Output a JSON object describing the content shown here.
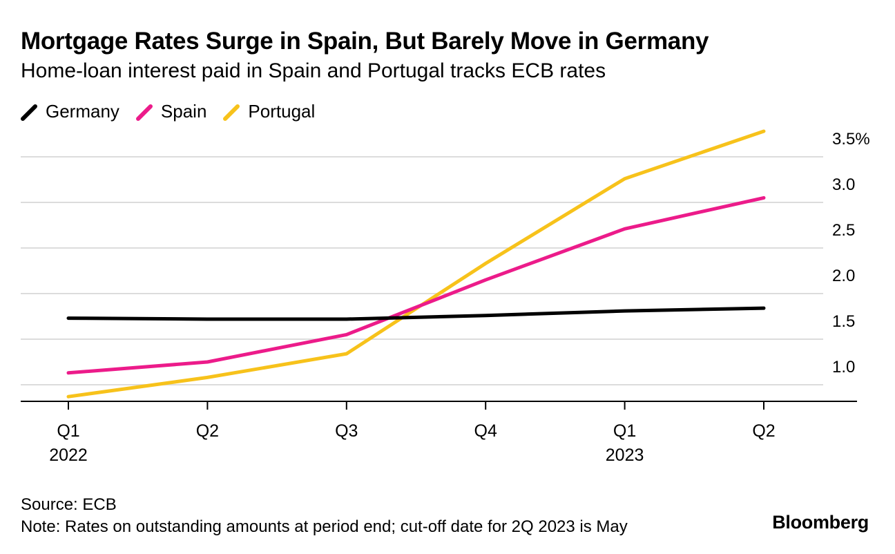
{
  "chart_data": {
    "type": "line",
    "title": "Mortgage Rates Surge in Spain, But Barely Move in Germany",
    "subtitle": "Home-loan interest paid in Spain and Portugal tracks ECB rates",
    "x": [
      "Q1 2022",
      "Q2 2022",
      "Q3 2022",
      "Q4 2022",
      "Q1 2023",
      "Q2 2023"
    ],
    "x_tick_labels": [
      {
        "quarter": "Q1",
        "year": "2022"
      },
      {
        "quarter": "Q2",
        "year": ""
      },
      {
        "quarter": "Q3",
        "year": ""
      },
      {
        "quarter": "Q4",
        "year": ""
      },
      {
        "quarter": "Q1",
        "year": "2023"
      },
      {
        "quarter": "Q2",
        "year": ""
      }
    ],
    "series": [
      {
        "name": "Germany",
        "color": "#000000",
        "values": [
          1.73,
          1.72,
          1.72,
          1.76,
          1.81,
          1.84
        ]
      },
      {
        "name": "Spain",
        "color": "#ec1b8a",
        "values": [
          1.13,
          1.25,
          1.55,
          2.15,
          2.71,
          3.05
        ]
      },
      {
        "name": "Portugal",
        "color": "#f7c21b",
        "values": [
          0.87,
          1.08,
          1.34,
          2.33,
          3.26,
          3.78
        ]
      }
    ],
    "y_ticks": [
      {
        "value": 1.0,
        "label": "1.0"
      },
      {
        "value": 1.5,
        "label": "1.5"
      },
      {
        "value": 2.0,
        "label": "2.0"
      },
      {
        "value": 2.5,
        "label": "2.5"
      },
      {
        "value": 3.0,
        "label": "3.0"
      },
      {
        "value": 3.5,
        "label": "3.5%"
      }
    ],
    "ylim": [
      0.8,
      3.85
    ],
    "xlabel": "",
    "ylabel": "",
    "grid": true,
    "legend_position": "top-left"
  },
  "footer": {
    "source": "Source: ECB",
    "note": "Note: Rates on outstanding amounts at period end; cut-off date for 2Q 2023 is May",
    "brand": "Bloomberg"
  }
}
